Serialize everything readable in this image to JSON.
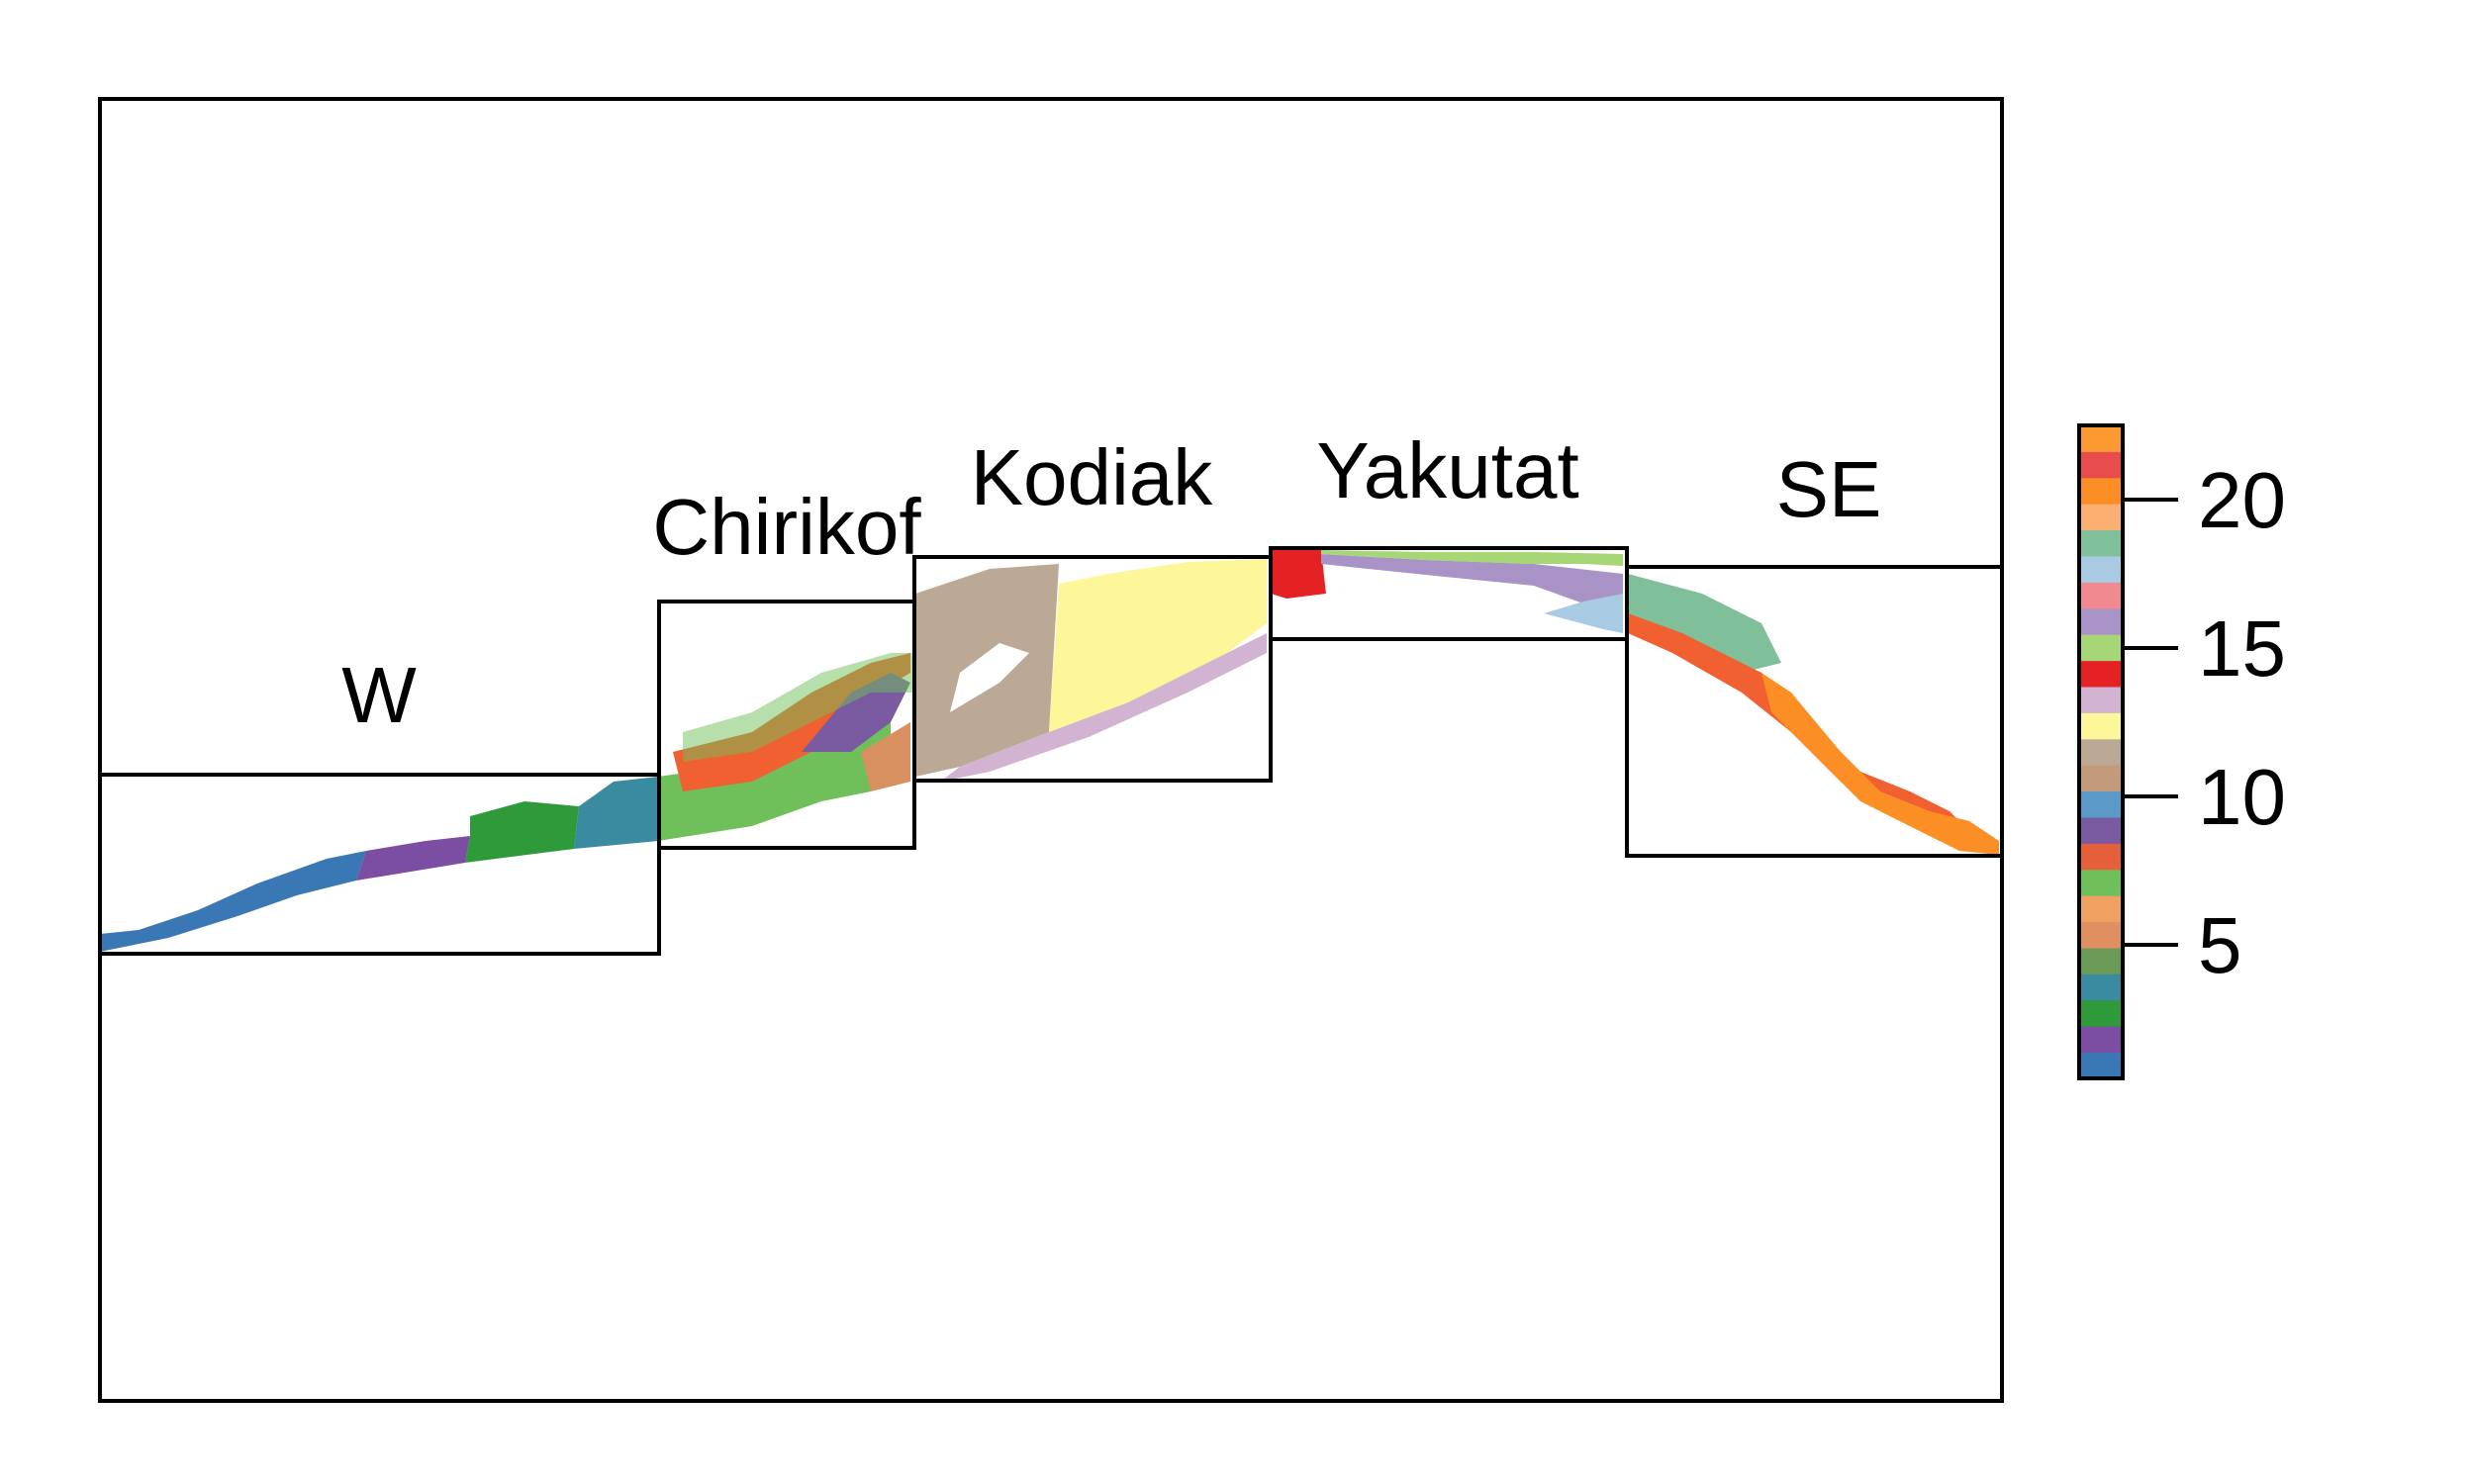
{
  "regions": [
    {
      "label": "W"
    },
    {
      "label": "Chirikof"
    },
    {
      "label": "Kodiak"
    },
    {
      "label": "Yakutat"
    },
    {
      "label": "SE"
    }
  ],
  "legend": {
    "min": 1,
    "max": 22,
    "ticks": [
      "5",
      "10",
      "15",
      "20"
    ],
    "tick_values": [
      5,
      10,
      15,
      20
    ],
    "colors": [
      "#3a78b5",
      "#7b4ea3",
      "#2f9a3a",
      "#3a8aa0",
      "#6a9a55",
      "#e09060",
      "#f0a060",
      "#6fbf5a",
      "#e5603a",
      "#7a5aa0",
      "#5b9ac8",
      "#c39a7a",
      "#bba995",
      "#fdf79a",
      "#d2b3d2",
      "#e42224",
      "#a6d675",
      "#a993c6",
      "#f08a90",
      "#a8cbe3",
      "#7fbf9a",
      "#f9b070",
      "#fb8e25",
      "#e84c4c",
      "#fb9a30"
    ]
  },
  "zones": {
    "W": [
      "#3a78b5",
      "#7b4ea3",
      "#2f9a3a",
      "#3a8aa0",
      "#6a9a55"
    ],
    "Chirikof": [
      "#f06030",
      "#6fbf5a",
      "#7a5aa0",
      "#d99060",
      "#5b9ac8"
    ],
    "Kodiak": [
      "#bba995",
      "#fdf79a",
      "#d2b3d2",
      "#ffffff"
    ],
    "Yakutat": [
      "#e42224",
      "#a993c6",
      "#a6d675",
      "#a8cbe3"
    ],
    "SE": [
      "#7fbf9a",
      "#f06030",
      "#f9a050",
      "#fb8e25"
    ]
  }
}
